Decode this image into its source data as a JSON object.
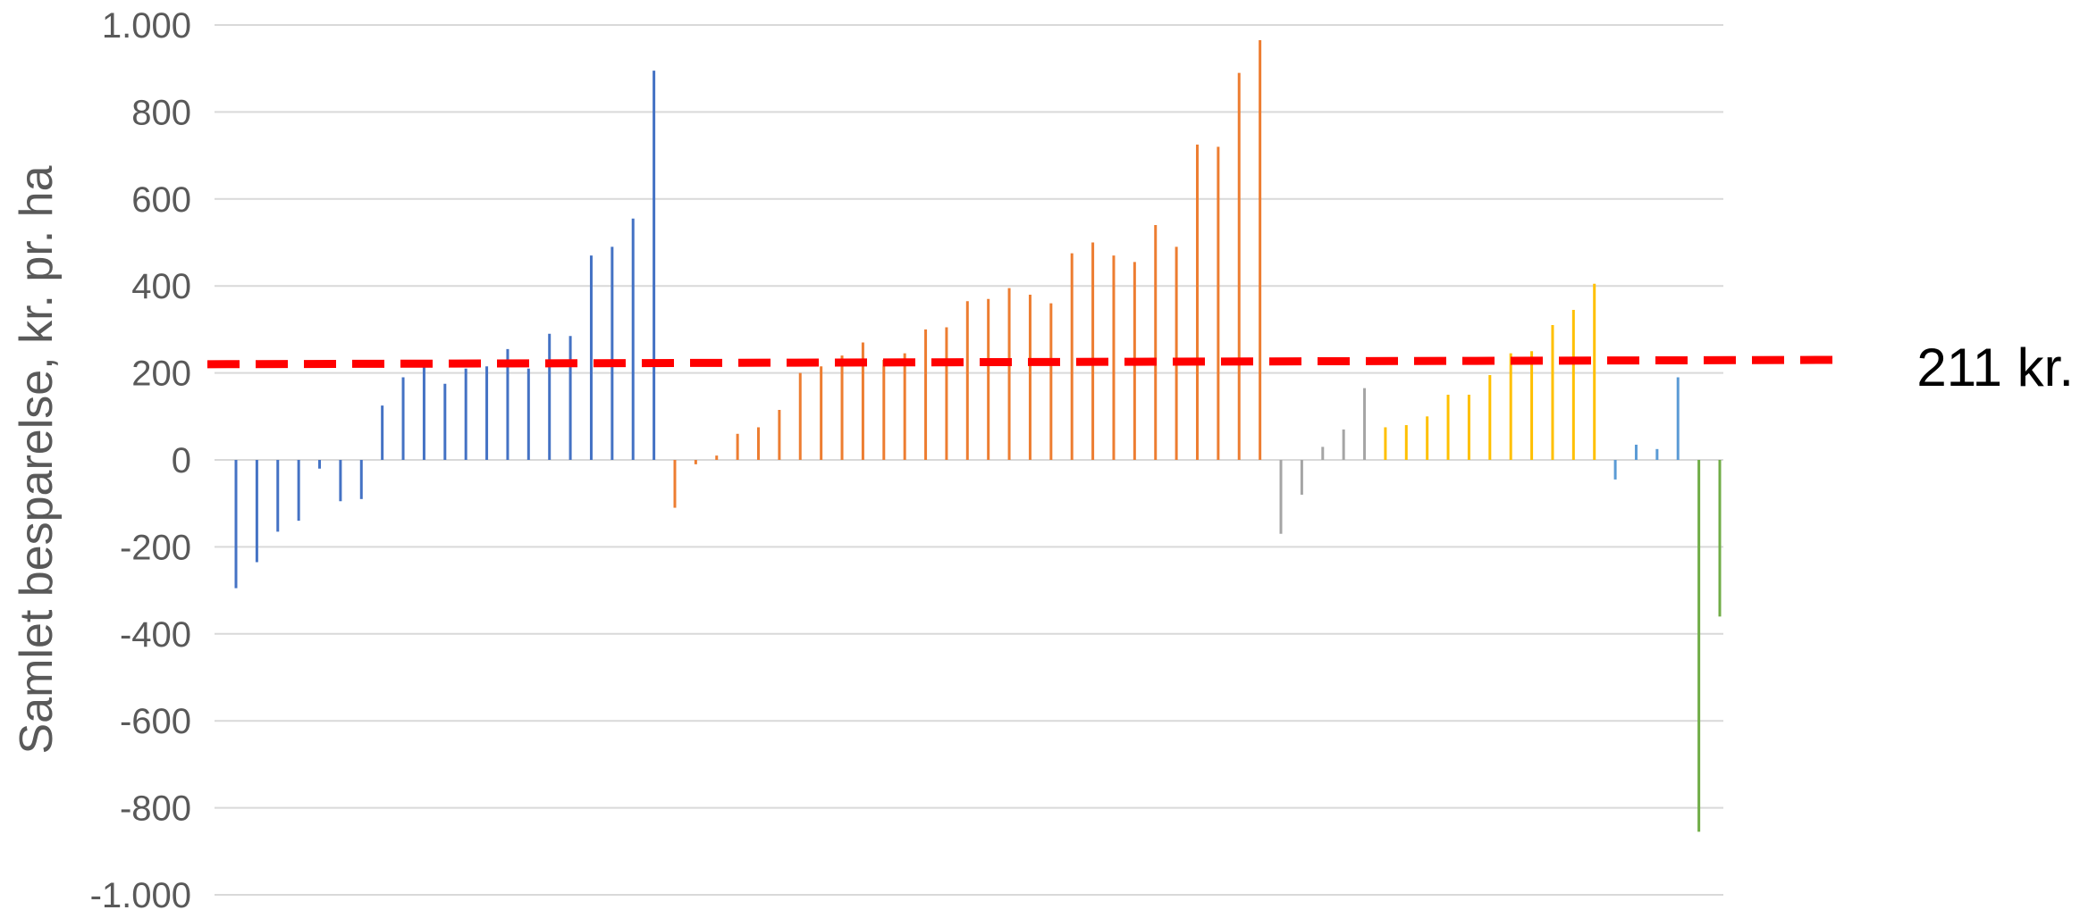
{
  "chart_data": {
    "type": "bar",
    "title": "",
    "xlabel": "",
    "ylabel": "Samlet besparelse, kr. pr. ha",
    "ylim": [
      -1000,
      1000
    ],
    "yticks": [
      1000,
      800,
      600,
      400,
      200,
      0,
      -200,
      -400,
      -600,
      -800,
      -1000
    ],
    "ytick_labels": [
      "1.000",
      "800",
      "600",
      "400",
      "200",
      "0",
      "-200",
      "-400",
      "-600",
      "-800",
      "-1.000"
    ],
    "grid": true,
    "reference_line": {
      "label": "211 kr.",
      "value_start": 220,
      "value_end": 230,
      "color": "#FF0000",
      "style": "dashed"
    },
    "series": [
      {
        "color": "#4472C4",
        "values": [
          -295,
          -235,
          -165,
          -140,
          -20,
          -95,
          -90,
          125,
          190,
          215,
          175,
          210,
          215,
          255,
          210,
          290,
          285,
          470,
          490,
          555,
          895
        ]
      },
      {
        "color": "#ED7D31",
        "values": [
          -110,
          -10,
          10,
          60,
          75,
          115,
          200,
          215,
          240,
          270,
          230,
          245,
          300,
          305,
          365,
          370,
          395,
          380,
          360,
          475,
          500,
          470,
          455,
          540,
          490,
          725,
          720,
          890,
          965
        ]
      },
      {
        "color": "#A5A5A5",
        "values": [
          -170,
          -80,
          30,
          70,
          165
        ]
      },
      {
        "color": "#FFC000",
        "values": [
          75,
          80,
          100,
          150,
          150,
          195,
          245,
          250,
          310,
          345,
          405
        ]
      },
      {
        "color": "#5B9BD5",
        "values": [
          -45,
          35,
          25,
          190
        ]
      },
      {
        "color": "#70AD47",
        "values": [
          -855,
          -360
        ]
      }
    ]
  }
}
